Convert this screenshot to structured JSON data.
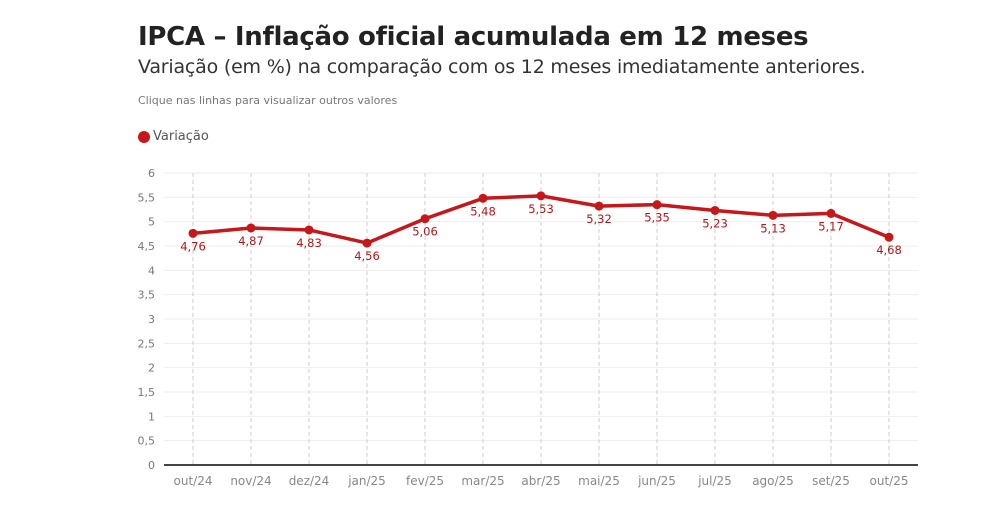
{
  "header": {
    "title": "IPCA – Inflação oficial acumulada em 12 meses",
    "subtitle": "Variação (em %) na comparação com os 12 meses imediatamente anteriores.",
    "note": "Clique nas linhas para visualizar outros valores"
  },
  "chart_data": {
    "type": "line",
    "title": "IPCA – Inflação oficial acumulada em 12 meses",
    "subtitle": "Variação (em %) na comparação com os 12 meses imediatamente anteriores.",
    "categories": [
      "out/24",
      "nov/24",
      "dez/24",
      "jan/25",
      "fev/25",
      "mar/25",
      "abr/25",
      "mai/25",
      "jun/25",
      "jul/25",
      "ago/25",
      "set/25",
      "out/25"
    ],
    "series": [
      {
        "name": "Variação",
        "color": "#c4181b",
        "values": [
          4.76,
          4.87,
          4.83,
          4.56,
          5.06,
          5.48,
          5.53,
          5.32,
          5.35,
          5.23,
          5.13,
          5.17,
          4.68
        ],
        "labels": [
          "4,76",
          "4,87",
          "4,83",
          "4,56",
          "5,06",
          "5,48",
          "5,53",
          "5,32",
          "5,35",
          "5,23",
          "5,13",
          "5,17",
          "4,68"
        ]
      }
    ],
    "ylim": [
      0,
      6
    ],
    "yticks": [
      "0",
      "0,5",
      "1",
      "1,5",
      "2",
      "2,5",
      "3",
      "3,5",
      "4",
      "4,5",
      "5",
      "5,5",
      "6"
    ],
    "grid": true,
    "legend": "top-left"
  }
}
